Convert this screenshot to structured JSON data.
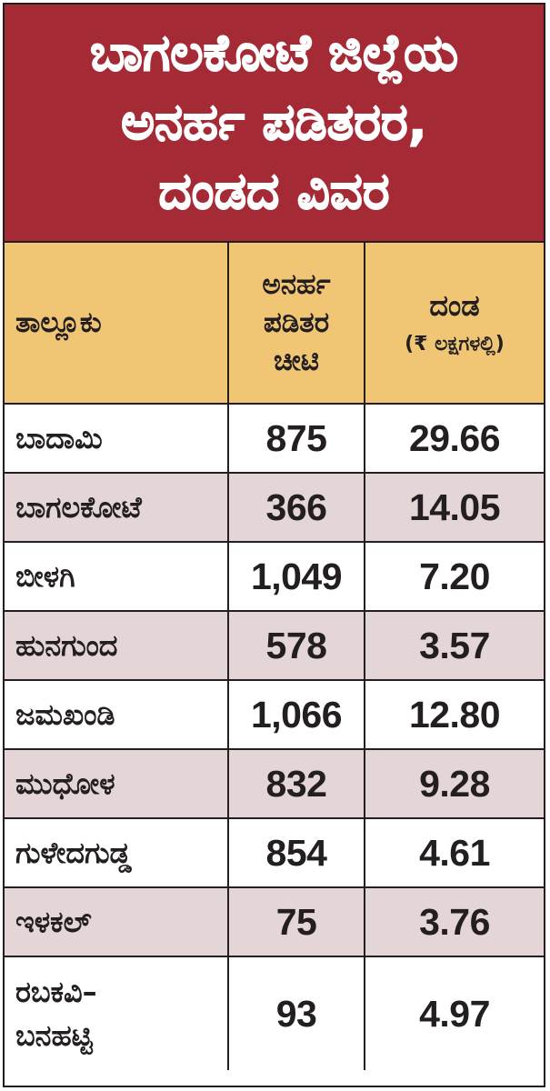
{
  "title": {
    "lines": [
      "ಬಾಗಲಕೋಟೆ ಜಿಲ್ಲೆಯ",
      "ಅನರ್ಹ ಪಡಿತರರ,",
      "ದಂಡದ ವಿವರ"
    ]
  },
  "table": {
    "headers": {
      "taluk": "ತಾಲ್ಲೂಕು",
      "cards": [
        "ಅನರ್ಹ",
        "ಪಡಿತರ",
        "ಚೀಟಿ"
      ],
      "fine": "ದಂಡ",
      "fine_unit": "(₹ ಲಕ್ಷಗಳಲ್ಲಿ)"
    },
    "rows": [
      {
        "taluk": "ಬಾದಾಮಿ",
        "cards": "875",
        "fine": "29.66"
      },
      {
        "taluk": "ಬಾಗಲಕೋಟೆ",
        "cards": "366",
        "fine": "14.05"
      },
      {
        "taluk": "ಬೀಳಗಿ",
        "cards": "1,049",
        "fine": "7.20"
      },
      {
        "taluk": "ಹುನಗುಂದ",
        "cards": "578",
        "fine": "3.57"
      },
      {
        "taluk": "ಜಮಖಂಡಿ",
        "cards": "1,066",
        "fine": "12.80"
      },
      {
        "taluk": "ಮುಧೋಳ",
        "cards": "832",
        "fine": "9.28"
      },
      {
        "taluk": "ಗುಳೇದಗುಡ್ಡ",
        "cards": "854",
        "fine": "4.61"
      },
      {
        "taluk": "ಇಳಕಲ್",
        "cards": "75",
        "fine": "3.76"
      },
      {
        "taluk_lines": [
          "ರಬಕವಿ–",
          "ಬನಹಟ್ಟಿ"
        ],
        "cards": "93",
        "fine": "4.97"
      }
    ]
  },
  "colors": {
    "title_bg": "#a42a35",
    "header_bg": "#f0c674",
    "alt_row_bg": "#e4d6d6",
    "border": "#231f20"
  }
}
